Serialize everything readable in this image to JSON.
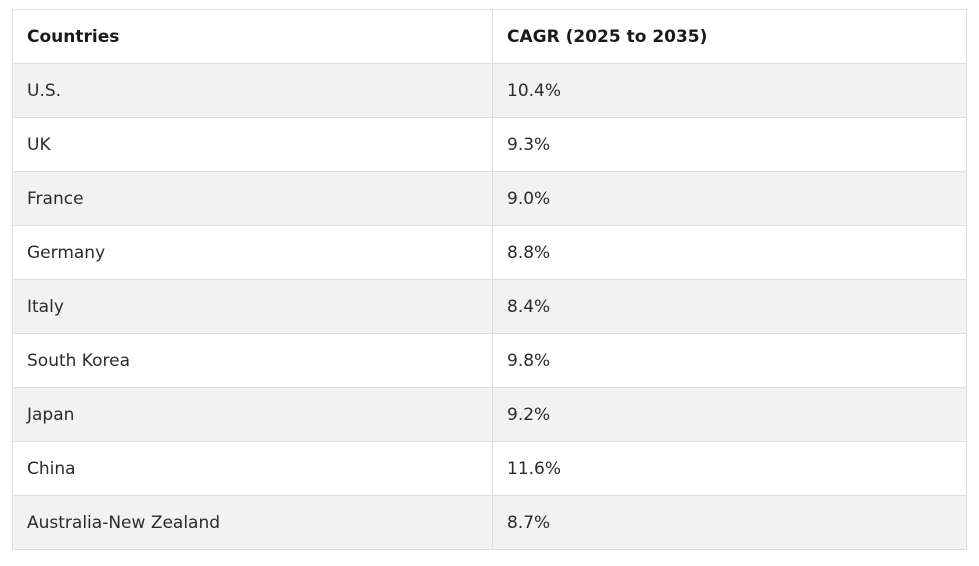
{
  "table": {
    "headers": [
      "Countries",
      "CAGR (2025 to 2035)"
    ],
    "rows": [
      [
        "U.S.",
        "10.4%"
      ],
      [
        "UK",
        "9.3%"
      ],
      [
        "France",
        "9.0%"
      ],
      [
        "Germany",
        "8.8%"
      ],
      [
        "Italy",
        "8.4%"
      ],
      [
        "South Korea",
        "9.8%"
      ],
      [
        "Japan",
        "9.2%"
      ],
      [
        "China",
        "11.6%"
      ],
      [
        "Australia-New Zealand",
        "8.7%"
      ]
    ]
  },
  "colors": {
    "stripe": "#f2f2f2",
    "border": "#dedede",
    "text": "#2b2b2b"
  }
}
